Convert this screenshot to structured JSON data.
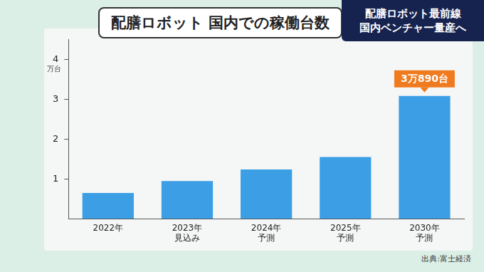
{
  "chart_data": {
    "type": "bar",
    "title": "配膳ロボット 国内での稼働台数",
    "subtitle": [
      "配膳ロボット最前線",
      "国内ベンチャー量産へ"
    ],
    "categories": [
      [
        "2022年"
      ],
      [
        "2023年",
        "見込み"
      ],
      [
        "2024年",
        "予測"
      ],
      [
        "2025年",
        "予測"
      ],
      [
        "2030年",
        "予測"
      ]
    ],
    "values": [
      0.65,
      0.95,
      1.24,
      1.55,
      3.089
    ],
    "value_labels": [
      null,
      null,
      null,
      null,
      "3万890台"
    ],
    "color": "#3c9fe6",
    "y_label": "万台",
    "ylim": [
      0,
      4.5
    ],
    "yticks": [
      1,
      2,
      3,
      4
    ],
    "grid": false,
    "source": "出典:富士経済"
  }
}
